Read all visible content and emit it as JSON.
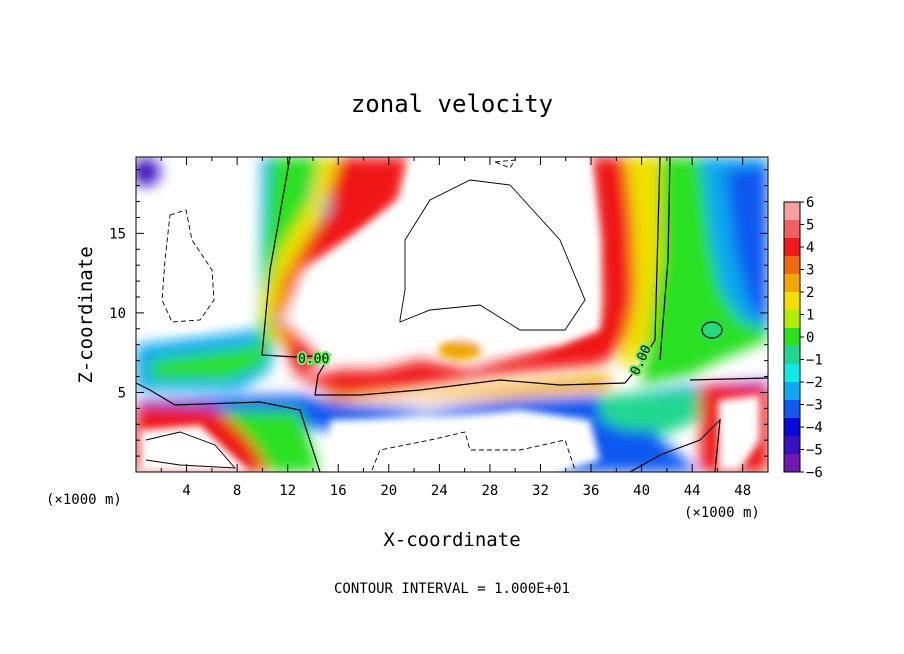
{
  "chart_data": {
    "type": "heatmap",
    "title": "zonal velocity",
    "xlabel": "X-coordinate",
    "ylabel": "Z-coordinate",
    "x_unit_label": "(×1000 m)",
    "x_unit_label_right": "(×1000 m)",
    "xlim": [
      0,
      50
    ],
    "ylim": [
      0,
      19.8
    ],
    "x_ticks": [
      4,
      8,
      12,
      16,
      20,
      24,
      28,
      32,
      36,
      40,
      44,
      48
    ],
    "y_ticks": [
      5,
      10,
      15
    ],
    "colorbar": {
      "ticks": [
        6,
        5,
        4,
        3,
        2,
        1,
        0,
        -1,
        -2,
        -3,
        -4,
        -5,
        -6
      ],
      "range": [
        -6,
        6
      ],
      "colors": [
        "#f8a0a0",
        "#f06060",
        "#f01818",
        "#f06a10",
        "#f0a800",
        "#f0e000",
        "#b4ec00",
        "#2ce020",
        "#20d890",
        "#10e8e8",
        "#10a8f0",
        "#1058f0",
        "#0808d8",
        "#3a10c0",
        "#7018b0"
      ]
    },
    "contour_labels": [
      "0.00",
      "0.00"
    ],
    "footer": "CONTOUR INTERVAL = 1.000E+01"
  }
}
